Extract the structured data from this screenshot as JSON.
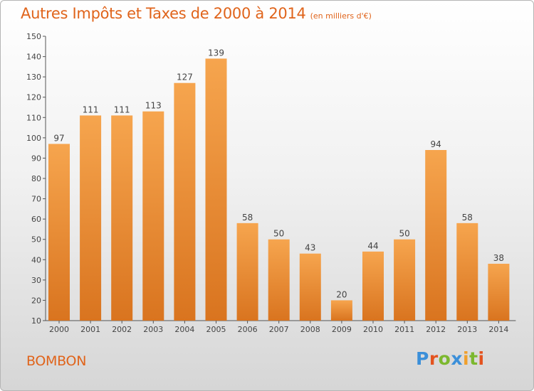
{
  "chart_data": {
    "type": "bar",
    "title": "Autres Impôts et Taxes de 2000 à 2014",
    "unit_label": "(en milliers d'€)",
    "categories": [
      "2000",
      "2001",
      "2002",
      "2003",
      "2004",
      "2005",
      "2006",
      "2007",
      "2008",
      "2009",
      "2010",
      "2011",
      "2012",
      "2013",
      "2014"
    ],
    "values": [
      97,
      111,
      111,
      113,
      127,
      139,
      58,
      50,
      43,
      20,
      44,
      50,
      94,
      58,
      38
    ],
    "ylim": [
      10,
      150
    ],
    "yticks": [
      10,
      20,
      30,
      40,
      50,
      60,
      70,
      80,
      90,
      100,
      110,
      120,
      130,
      140,
      150
    ],
    "grid": false,
    "colors": {
      "bar_light": "#f6a54e",
      "bar_dark": "#d9741f",
      "title": "#e0641b"
    }
  },
  "footer": {
    "town": "BOMBON",
    "brand": "Proxiti",
    "brand_colors": [
      "#3b8fd9",
      "#e4531f",
      "#7cb82f",
      "#3b8fd9",
      "#f0a02c",
      "#7cb82f",
      "#e4531f"
    ]
  }
}
